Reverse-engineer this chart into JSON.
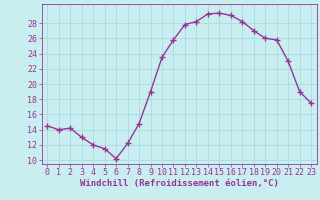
{
  "x": [
    0,
    1,
    2,
    3,
    4,
    5,
    6,
    7,
    8,
    9,
    10,
    11,
    12,
    13,
    14,
    15,
    16,
    17,
    18,
    19,
    20,
    21,
    22,
    23
  ],
  "y": [
    14.5,
    14.0,
    14.2,
    13.0,
    12.0,
    11.5,
    10.2,
    12.2,
    14.8,
    19.0,
    23.5,
    25.8,
    27.8,
    28.2,
    29.2,
    29.3,
    29.0,
    28.2,
    27.0,
    26.0,
    25.8,
    23.0,
    19.0,
    17.5
  ],
  "line_color": "#993399",
  "marker": "+",
  "markersize": 4,
  "linewidth": 1.0,
  "bg_color": "#c8eef0",
  "grid_color": "#aadddd",
  "xlabel": "Windchill (Refroidissement éolien,°C)",
  "xlabel_fontsize": 6.5,
  "tick_fontsize": 6,
  "xlim": [
    -0.5,
    23.5
  ],
  "ylim": [
    9.5,
    30.5
  ],
  "yticks": [
    10,
    12,
    14,
    16,
    18,
    20,
    22,
    24,
    26,
    28
  ],
  "xticks": [
    0,
    1,
    2,
    3,
    4,
    5,
    6,
    7,
    8,
    9,
    10,
    11,
    12,
    13,
    14,
    15,
    16,
    17,
    18,
    19,
    20,
    21,
    22,
    23
  ]
}
